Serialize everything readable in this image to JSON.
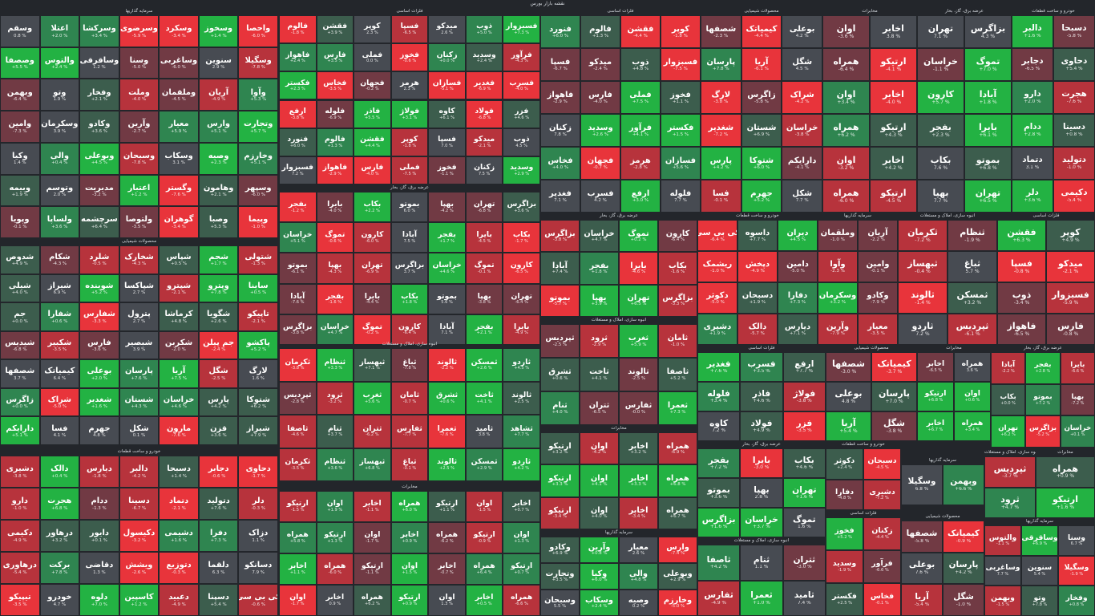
{
  "page_title": "نقشه بازار بورس",
  "colors": {
    "up_strong": "#23b243",
    "up_mid": "#2f8550",
    "up_weak": "#3c5d4d",
    "neutral": "#474b52",
    "down_weak": "#713a44",
    "down_mid": "#b7333c",
    "down_strong": "#e8343b",
    "background": "#23262b"
  },
  "chart_data": {
    "type": "treemap",
    "title": "نقشه بازار بورس",
    "sectors": [
      {
        "name": "سرمایه گذاریها",
        "tiles": [
          "وسقم",
          "اعتلا",
          "وسرکشا",
          "وسرضوی",
          "وسکرد",
          "وسخوز",
          "واحصا",
          "وصصفا",
          "والتوس",
          "وساقرقی",
          "وسنا",
          "وساغربی",
          "سنوین",
          "وسگیلا",
          "وبهمن",
          "وتو",
          "وفخار",
          "وملت",
          "وملقمان",
          "آریان",
          "وآوا",
          "وامین",
          "وسکرمان",
          "وکادو",
          "وآرین",
          "معیار",
          "وارس",
          "وتجارت",
          "وکیا",
          "والی",
          "وبوعلی",
          "وسبحان",
          "وسکاب",
          "وصیه",
          "وخارزم",
          "وبیمه",
          "وتوسم",
          "مدیریت",
          "اعتبار",
          "وگستر",
          "وهامون",
          "وسپهر",
          "وپویا",
          "ولساپا",
          "سرچشمه",
          "ولتوصا",
          "گوهران",
          "وصبا",
          "وپیما",
          "وکیهان",
          "وصنا",
          "وملت",
          "وسنا",
          "وصنعت"
        ]
      },
      {
        "name": "محصولات شیمیایی",
        "tiles": [
          "دارایکم",
          "فسا",
          "جهرم",
          "شکل",
          "مارون",
          "قزن",
          "شیراز",
          "شدوص",
          "شکام",
          "شلرد",
          "شخارک",
          "شپاس",
          "شجم",
          "شتولی",
          "شیلی",
          "شیراز",
          "شوینده",
          "شپاکسا",
          "شپترو",
          "وپترو",
          "ساینا",
          "جم",
          "شفارا",
          "شفارس",
          "پترول",
          "کرماشا",
          "شگویا",
          "تاپیکو",
          "شیدیس",
          "شکبیر",
          "فارس",
          "شبصیر",
          "شکربن",
          "جم پیلن",
          "پاکشو",
          "شصفها",
          "کیمیاتک",
          "بوعلی",
          "پارسان",
          "آریا",
          "شگل",
          "لارگ",
          "زاگرس",
          "شراک",
          "شغدیر",
          "شستان",
          "خراسان",
          "پارس",
          "شتوکا"
        ]
      },
      {
        "name": "خودرو و ساخت قطعات",
        "tiles": [
          "خودرو",
          "دلوه",
          "کاسپین",
          "دعبید",
          "دسپنا",
          "کی بی سی",
          "داسوه",
          "دیران",
          "ریشمک",
          "دپخش",
          "دامین",
          "دکوثر",
          "دسبحان",
          "دفارا",
          "دشیری",
          "دالک",
          "دیارس",
          "دالبر",
          "دسبحا",
          "دجابر",
          "دحاوی",
          "دارو",
          "هجرت",
          "ددام",
          "دسینا",
          "دتماد",
          "دتولید",
          "دلر",
          "دکیمی",
          "درهاور",
          "دایور",
          "دکیسول",
          "دشیمی",
          "دفرا",
          "دزاک",
          "درهاوری",
          "برکت",
          "دقاضی",
          "ویشش",
          "دتوزیع",
          "دلقما",
          "دسانکو",
          "تیپیکو"
        ]
      },
      {
        "name": "فلزات اساسی",
        "tiles": [
          "فارس",
          "فملی",
          "فخوز",
          "زکنان",
          "وسدید",
          "فرآور",
          "فکستر",
          "فخاس",
          "فجهان",
          "هرمز",
          "فسازان",
          "فغدیر",
          "فسرب",
          "ارفع",
          "فلوله",
          "فاذر",
          "فولاژ",
          "کاوه",
          "فولاد",
          "فزر",
          "فنورد",
          "فالوم",
          "فقشن",
          "کوپر",
          "فسپا",
          "میدکو",
          "ذوب",
          "فسبزوار",
          "فاهواز"
        ]
      },
      {
        "name": "عرضه برق، گاز، بخار",
        "tiles": [
          "تهران",
          "بزاگرس",
          "خراسان",
          "تموگ",
          "کارون",
          "آبادا",
          "بفجر",
          "بایرا",
          "بکاب",
          "بموتو",
          "بهپا"
        ]
      },
      {
        "name": "انبوه سازی، املاک و مستغلات",
        "tiles": [
          "ثپردیس",
          "ثرود",
          "ثغرب",
          "ثامان",
          "ثشرق",
          "ثاخت",
          "ثالوند",
          "ثاصفا",
          "ثنام",
          "ثتران",
          "ثفارس",
          "ثعمرا",
          "ثامید",
          "ثشاهد",
          "ثکرمان",
          "ثنظام",
          "ثبهساز",
          "ثباغ",
          "ثالوند",
          "ثمسکن",
          "ثاردو"
        ]
      },
      {
        "name": "مخابرات",
        "tiles": [
          "اخابر",
          "همراه",
          "ارتیکو",
          "اوان"
        ]
      }
    ]
  },
  "tiles": [
    {
      "g": "bar-1",
      "s": "صرمایه گذاریها",
      "r": [
        0,
        10,
        347,
        287
      ]
    }
  ]
}
